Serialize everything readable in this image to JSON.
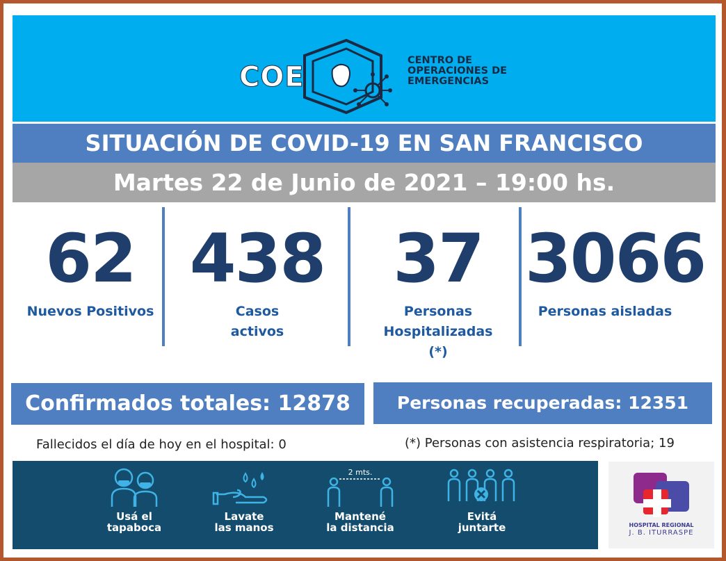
{
  "logo": {
    "acronym": "COE",
    "line1": "CENTRO DE",
    "line2": "OPERACIONES DE",
    "line3": "EMERGENCIAS"
  },
  "title": "SITUACIÓN DE COVID-19 EN SAN FRANCISCO",
  "date": "Martes 22 de Junio de 2021 – 19:00 hs.",
  "stats": [
    {
      "value": "62",
      "label": "Nuevos Positivos"
    },
    {
      "value": "438",
      "label_line1": "Casos",
      "label_line2": "activos"
    },
    {
      "value": "37",
      "label_line1": "Personas",
      "label_line2": "Hospitalizadas",
      "label_line3": "(*)"
    },
    {
      "value": "3066",
      "label": "Personas aisladas"
    }
  ],
  "confirmed": "Confirmados totales: 12878",
  "recovered": "Personas recuperadas: 12351",
  "deaths_note": "Fallecidos el día de hoy en el hospital: 0",
  "respiratory_note": "(*) Personas con asistencia respiratoria; 19",
  "tips": [
    {
      "icon": "people-mask-icon",
      "line1": "Usá el",
      "line2": "tapaboca"
    },
    {
      "icon": "hand-wash-icon",
      "line1": "Lavate",
      "line2": "las manos"
    },
    {
      "icon": "distance-icon",
      "line1": "Mantené",
      "line2": "la distancia",
      "distance": "2 mts."
    },
    {
      "icon": "no-gathering-icon",
      "line1": "Evitá",
      "line2": "juntarte"
    }
  ],
  "hospital": {
    "line1": "HOSPITAL REGIONAL",
    "line2": "J. B. ITURRASPE"
  },
  "colors": {
    "header": "#00aeef",
    "title_bar": "#4f7fc0",
    "date_bar": "#a6a6a6",
    "numbers": "#1f3e6b",
    "labels": "#1f5aa0",
    "banner": "#134c6c",
    "frame": "#b5572c"
  }
}
